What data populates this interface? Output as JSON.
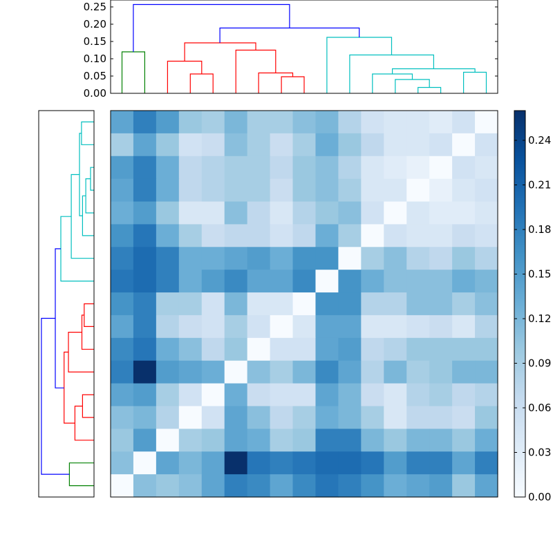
{
  "chart_data": [
    {
      "type": "dendrogram",
      "orientation": "top",
      "ylim": [
        0,
        0.27
      ],
      "yticks": [
        "0.00",
        "0.05",
        "0.10",
        "0.15",
        "0.20",
        "0.25"
      ],
      "link_colors": [
        "#008000",
        "#ff0000",
        "#00bfbf",
        "#0000ff"
      ],
      "links": [
        {
          "x": [
            1,
            1,
            2,
            2
          ],
          "y": [
            0,
            0.12,
            0.12,
            0
          ],
          "color": "#008000"
        },
        {
          "x": [
            4,
            4,
            5,
            5
          ],
          "y": [
            0,
            0.056,
            0.056,
            0
          ],
          "color": "#ff0000"
        },
        {
          "x": [
            3,
            3,
            4.5,
            4.5
          ],
          "y": [
            0,
            0.093,
            0.093,
            0.056
          ],
          "color": "#ff0000"
        },
        {
          "x": [
            8,
            8,
            9,
            9
          ],
          "y": [
            0,
            0.048,
            0.048,
            0
          ],
          "color": "#ff0000"
        },
        {
          "x": [
            7,
            7,
            8.5,
            8.5
          ],
          "y": [
            0,
            0.059,
            0.059,
            0.048
          ],
          "color": "#ff0000"
        },
        {
          "x": [
            6,
            6,
            7.75,
            7.75
          ],
          "y": [
            0,
            0.125,
            0.125,
            0.059
          ],
          "color": "#ff0000"
        },
        {
          "x": [
            3.75,
            3.75,
            6.875,
            6.875
          ],
          "y": [
            0.093,
            0.146,
            0.146,
            0.125
          ],
          "color": "#ff0000"
        },
        {
          "x": [
            14,
            14,
            15,
            15
          ],
          "y": [
            0,
            0.017,
            0.017,
            0
          ],
          "color": "#00bfbf"
        },
        {
          "x": [
            13,
            13,
            14.5,
            14.5
          ],
          "y": [
            0,
            0.04,
            0.04,
            0.017
          ],
          "color": "#00bfbf"
        },
        {
          "x": [
            12,
            12,
            13.75,
            13.75
          ],
          "y": [
            0,
            0.056,
            0.056,
            0.04
          ],
          "color": "#00bfbf"
        },
        {
          "x": [
            16,
            16,
            17,
            17
          ],
          "y": [
            0,
            0.061,
            0.061,
            0
          ],
          "color": "#00bfbf"
        },
        {
          "x": [
            12.875,
            12.875,
            16.5,
            16.5
          ],
          "y": [
            0.056,
            0.071,
            0.071,
            0.061
          ],
          "color": "#00bfbf"
        },
        {
          "x": [
            11,
            11,
            14.6875,
            14.6875
          ],
          "y": [
            0,
            0.111,
            0.111,
            0.071
          ],
          "color": "#00bfbf"
        },
        {
          "x": [
            10,
            10,
            12.84,
            12.84
          ],
          "y": [
            0,
            0.162,
            0.162,
            0.111
          ],
          "color": "#00bfbf"
        },
        {
          "x": [
            5.3,
            5.3,
            11.42,
            11.42
          ],
          "y": [
            0.146,
            0.189,
            0.189,
            0.162
          ],
          "color": "#0000ff"
        },
        {
          "x": [
            1.5,
            1.5,
            8.36,
            8.36
          ],
          "y": [
            0.12,
            0.257,
            0.257,
            0.189
          ],
          "color": "#0000ff"
        }
      ]
    },
    {
      "type": "dendrogram",
      "orientation": "left",
      "xlim": [
        0,
        0.27
      ],
      "link_colors": [
        "#008000",
        "#ff0000",
        "#00bfbf",
        "#0000ff"
      ],
      "links": [
        {
          "y": [
            1,
            1,
            2,
            2
          ],
          "x": [
            0,
            0.12,
            0.12,
            0
          ],
          "color": "#008000"
        },
        {
          "y": [
            4,
            4,
            5,
            5
          ],
          "x": [
            0,
            0.056,
            0.056,
            0
          ],
          "color": "#ff0000"
        },
        {
          "y": [
            3,
            3,
            4.5,
            4.5
          ],
          "x": [
            0,
            0.093,
            0.093,
            0.056
          ],
          "color": "#ff0000"
        },
        {
          "y": [
            8,
            8,
            9,
            9
          ],
          "x": [
            0,
            0.048,
            0.048,
            0
          ],
          "color": "#ff0000"
        },
        {
          "y": [
            7,
            7,
            8.5,
            8.5
          ],
          "x": [
            0,
            0.059,
            0.059,
            0.048
          ],
          "color": "#ff0000"
        },
        {
          "y": [
            6,
            6,
            7.75,
            7.75
          ],
          "x": [
            0,
            0.125,
            0.125,
            0.059
          ],
          "color": "#ff0000"
        },
        {
          "y": [
            3.75,
            3.75,
            6.875,
            6.875
          ],
          "x": [
            0.093,
            0.146,
            0.146,
            0.125
          ],
          "color": "#ff0000"
        },
        {
          "y": [
            14,
            14,
            15,
            15
          ],
          "x": [
            0,
            0.017,
            0.017,
            0
          ],
          "color": "#00bfbf"
        },
        {
          "y": [
            13,
            13,
            14.5,
            14.5
          ],
          "x": [
            0,
            0.04,
            0.04,
            0.017
          ],
          "color": "#00bfbf"
        },
        {
          "y": [
            12,
            12,
            13.75,
            13.75
          ],
          "x": [
            0,
            0.056,
            0.056,
            0.04
          ],
          "color": "#00bfbf"
        },
        {
          "y": [
            16,
            16,
            17,
            17
          ],
          "x": [
            0,
            0.061,
            0.061,
            0
          ],
          "color": "#00bfbf"
        },
        {
          "y": [
            12.875,
            12.875,
            16.5,
            16.5
          ],
          "x": [
            0.056,
            0.071,
            0.071,
            0.061
          ],
          "color": "#00bfbf"
        },
        {
          "y": [
            11,
            11,
            14.6875,
            14.6875
          ],
          "x": [
            0,
            0.111,
            0.111,
            0.071
          ],
          "color": "#00bfbf"
        },
        {
          "y": [
            10,
            10,
            12.84,
            12.84
          ],
          "x": [
            0,
            0.162,
            0.162,
            0.111
          ],
          "color": "#00bfbf"
        },
        {
          "y": [
            5.3,
            5.3,
            11.42,
            11.42
          ],
          "x": [
            0.146,
            0.189,
            0.189,
            0.162
          ],
          "color": "#0000ff"
        },
        {
          "y": [
            1.5,
            1.5,
            8.36,
            8.36
          ],
          "x": [
            0.12,
            0.257,
            0.257,
            0.189
          ],
          "color": "#0000ff"
        }
      ]
    },
    {
      "type": "heatmap",
      "colormap": "Blues",
      "vmin": 0,
      "vmax": 0.26,
      "rows": 17,
      "cols": 17,
      "values": [
        [
          0.14,
          0.18,
          0.15,
          0.1,
          0.09,
          0.12,
          0.09,
          0.09,
          0.11,
          0.12,
          0.08,
          0.05,
          0.04,
          0.04,
          0.03,
          0.05,
          0.0
        ],
        [
          0.09,
          0.14,
          0.1,
          0.05,
          0.06,
          0.11,
          0.09,
          0.06,
          0.09,
          0.13,
          0.1,
          0.07,
          0.04,
          0.04,
          0.05,
          0.0,
          0.05
        ],
        [
          0.15,
          0.18,
          0.13,
          0.07,
          0.08,
          0.09,
          0.09,
          0.07,
          0.1,
          0.11,
          0.08,
          0.04,
          0.03,
          0.02,
          0.0,
          0.05,
          0.04
        ],
        [
          0.14,
          0.18,
          0.13,
          0.07,
          0.08,
          0.09,
          0.09,
          0.06,
          0.1,
          0.11,
          0.09,
          0.04,
          0.04,
          0.0,
          0.02,
          0.04,
          0.05
        ],
        [
          0.13,
          0.15,
          0.1,
          0.04,
          0.04,
          0.11,
          0.07,
          0.04,
          0.08,
          0.1,
          0.11,
          0.05,
          0.0,
          0.04,
          0.03,
          0.03,
          0.04
        ],
        [
          0.16,
          0.19,
          0.13,
          0.09,
          0.06,
          0.07,
          0.07,
          0.05,
          0.07,
          0.13,
          0.09,
          0.0,
          0.05,
          0.04,
          0.04,
          0.06,
          0.05
        ],
        [
          0.18,
          0.2,
          0.18,
          0.13,
          0.13,
          0.14,
          0.15,
          0.13,
          0.16,
          0.16,
          0.0,
          0.09,
          0.11,
          0.08,
          0.07,
          0.1,
          0.08
        ],
        [
          0.19,
          0.2,
          0.18,
          0.13,
          0.15,
          0.17,
          0.14,
          0.14,
          0.17,
          0.0,
          0.16,
          0.13,
          0.11,
          0.11,
          0.11,
          0.13,
          0.12
        ],
        [
          0.16,
          0.18,
          0.09,
          0.09,
          0.05,
          0.12,
          0.04,
          0.04,
          0.0,
          0.16,
          0.16,
          0.08,
          0.08,
          0.11,
          0.11,
          0.09,
          0.11
        ],
        [
          0.14,
          0.18,
          0.08,
          0.06,
          0.05,
          0.09,
          0.05,
          0.0,
          0.04,
          0.14,
          0.14,
          0.04,
          0.04,
          0.05,
          0.06,
          0.04,
          0.08
        ],
        [
          0.17,
          0.19,
          0.13,
          0.11,
          0.07,
          0.1,
          0.0,
          0.05,
          0.05,
          0.14,
          0.15,
          0.07,
          0.08,
          0.1,
          0.1,
          0.1,
          0.1
        ],
        [
          0.18,
          0.26,
          0.15,
          0.14,
          0.13,
          0.0,
          0.11,
          0.09,
          0.12,
          0.17,
          0.14,
          0.08,
          0.12,
          0.09,
          0.1,
          0.12,
          0.12
        ],
        [
          0.14,
          0.15,
          0.09,
          0.05,
          0.0,
          0.13,
          0.06,
          0.05,
          0.05,
          0.14,
          0.12,
          0.06,
          0.04,
          0.08,
          0.09,
          0.07,
          0.08
        ],
        [
          0.11,
          0.12,
          0.08,
          0.0,
          0.05,
          0.14,
          0.11,
          0.07,
          0.09,
          0.13,
          0.12,
          0.09,
          0.04,
          0.07,
          0.07,
          0.06,
          0.1
        ],
        [
          0.1,
          0.15,
          0.0,
          0.09,
          0.1,
          0.14,
          0.13,
          0.09,
          0.1,
          0.18,
          0.18,
          0.12,
          0.1,
          0.12,
          0.12,
          0.1,
          0.13
        ],
        [
          0.11,
          0.0,
          0.14,
          0.12,
          0.14,
          0.26,
          0.19,
          0.18,
          0.19,
          0.2,
          0.2,
          0.19,
          0.15,
          0.18,
          0.18,
          0.14,
          0.18
        ],
        [
          0.0,
          0.11,
          0.1,
          0.11,
          0.14,
          0.18,
          0.17,
          0.14,
          0.17,
          0.19,
          0.18,
          0.16,
          0.13,
          0.14,
          0.15,
          0.1,
          0.14
        ]
      ],
      "colorbar": {
        "range": [
          0,
          0.26
        ],
        "ticks": [
          "0.00",
          "0.03",
          "0.06",
          "0.09",
          "0.12",
          "0.15",
          "0.18",
          "0.21",
          "0.24"
        ]
      }
    }
  ]
}
